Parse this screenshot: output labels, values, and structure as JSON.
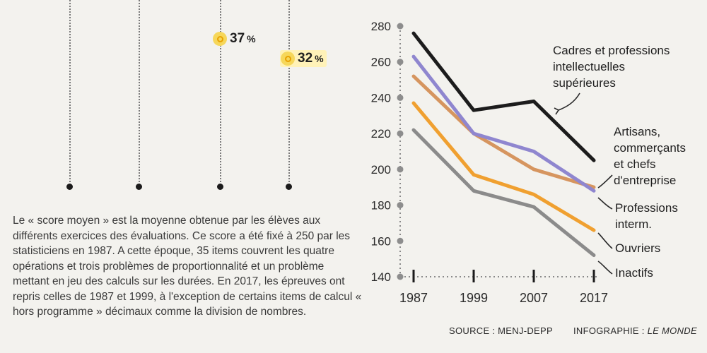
{
  "left_panel": {
    "markers": [
      {
        "value": "37",
        "unit": "%"
      },
      {
        "value": "32",
        "unit": "%"
      }
    ],
    "description": "Le « score moyen » est la moyenne obtenue par les élèves aux différents exercices des évaluations. Ce score a été fixé à 250 par les statisticiens en 1987. A cette époque, 35 items couvrent les quatre opérations et trois problèmes de proportionnalité et un problème mettant en jeu des calculs sur les durées. En 2017, les épreuves ont repris celles de 1987 et 1999, à l'exception de certains items de calcul « hors programme » décimaux comme la division de nombres."
  },
  "chart_data": {
    "type": "line",
    "categories": [
      "1987",
      "1999",
      "2007",
      "2017"
    ],
    "ylim": [
      140,
      280
    ],
    "yticks": [
      140,
      160,
      180,
      200,
      220,
      240,
      260,
      280
    ],
    "series": [
      {
        "name": "Cadres et professions intellectuelles supérieures",
        "values": [
          276,
          233,
          238,
          205
        ],
        "color": "#1c1c1c"
      },
      {
        "name": "Artisans, commerçants et chefs d'entreprise",
        "values": [
          252,
          220,
          200,
          190
        ],
        "color": "#d6955f"
      },
      {
        "name": "Professions interm.",
        "values": [
          263,
          220,
          210,
          188
        ],
        "color": "#8f86cf"
      },
      {
        "name": "Ouvriers",
        "values": [
          237,
          197,
          186,
          166
        ],
        "color": "#f0a030"
      },
      {
        "name": "Inactifs",
        "values": [
          222,
          188,
          179,
          152
        ],
        "color": "#8b8b8b"
      }
    ],
    "labels": [
      {
        "series": 0,
        "lines": [
          "Cadres et professions",
          "intellectuelles",
          "supérieures"
        ]
      },
      {
        "series": 1,
        "lines": [
          "Artisans,",
          "commerçants",
          "et chefs",
          "d'entreprise"
        ]
      },
      {
        "series": 2,
        "lines": [
          "Professions",
          "interm."
        ]
      },
      {
        "series": 3,
        "lines": [
          "Ouvriers"
        ]
      },
      {
        "series": 4,
        "lines": [
          "Inactifs"
        ]
      }
    ]
  },
  "footer": {
    "source": "SOURCE : MENJ-DEPP",
    "credit_label": "INFOGRAPHIE : ",
    "credit_name": "LE MONDE"
  }
}
